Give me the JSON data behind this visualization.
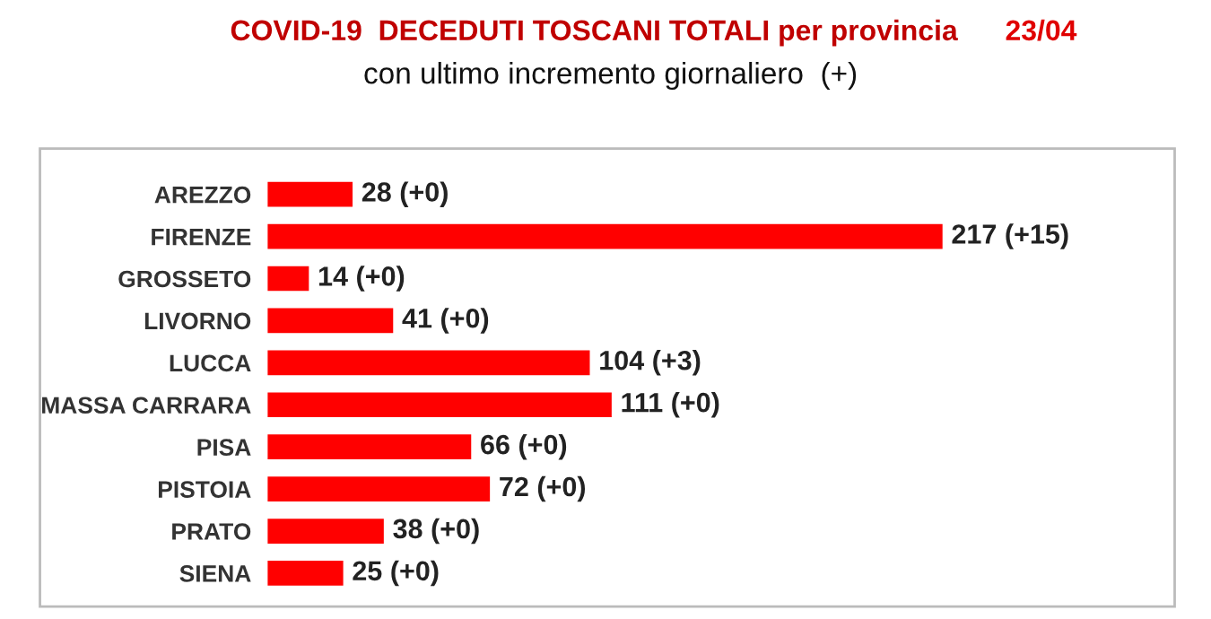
{
  "chart_data": {
    "type": "bar",
    "orientation": "horizontal",
    "title": "COVID-19  DECEDUTI TOSCANI TOTALI per provincia",
    "subtitle": "con ultimo incremento giornaliero  (+)",
    "annotations": [
      "23/04"
    ],
    "categories": [
      "AREZZO",
      "FIRENZE",
      "GROSSETO",
      "LIVORNO",
      "LUCCA",
      "MASSA CARRARA",
      "PISA",
      "PISTOIA",
      "PRATO",
      "SIENA"
    ],
    "values": [
      28,
      217,
      14,
      41,
      104,
      111,
      66,
      72,
      38,
      25
    ],
    "value_labels": [
      "28 (+0)",
      "217 (+15)",
      "14 (+0)",
      "41 (+0)",
      "104 (+3)",
      "111 (+0)",
      "66 (+0)",
      "72 (+0)",
      "38 (+0)",
      "25 (+0)"
    ],
    "color": "#ff0000",
    "grid": false,
    "legend": false
  }
}
